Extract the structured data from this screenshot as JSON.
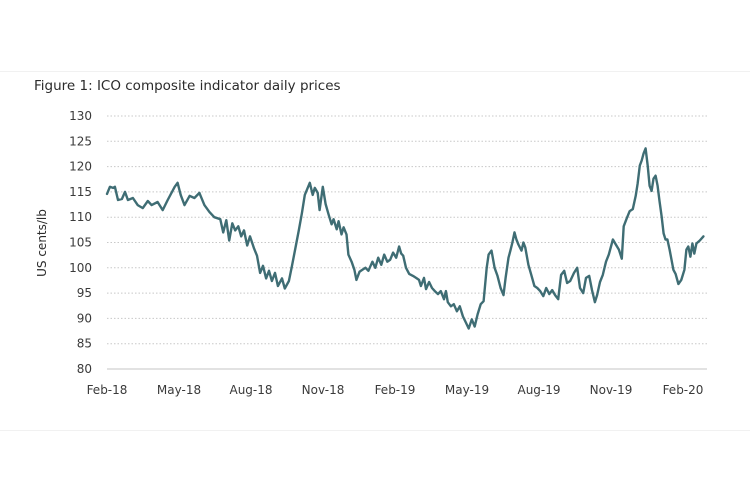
{
  "chart_data": {
    "type": "line",
    "title": "Figure 1: ICO composite indicator daily prices",
    "xlabel": "",
    "ylabel": "US cents/lb",
    "ylim": [
      80,
      130
    ],
    "yticks": [
      80,
      85,
      90,
      95,
      100,
      105,
      110,
      115,
      120,
      125,
      130
    ],
    "ytick_labels": [
      "80",
      "85",
      "90",
      "95",
      "100",
      "105",
      "110",
      "115",
      "120",
      "125",
      "130"
    ],
    "xlim_months_since_feb18": [
      0,
      25
    ],
    "xtick_months_since_feb18": [
      0,
      3,
      6,
      9,
      12,
      15,
      18,
      21,
      24
    ],
    "xtick_labels": [
      "Feb-18",
      "May-18",
      "Aug-18",
      "Nov-18",
      "Feb-19",
      "May-19",
      "Aug-19",
      "Nov-19",
      "Feb-20"
    ],
    "grid": "horizontal-dotted",
    "legend": "none",
    "line_color": "#3f6d74",
    "series": [
      {
        "name": "ICO composite indicator",
        "x_unit": "months since Feb-2018",
        "points": [
          [
            0.0,
            114.6
          ],
          [
            0.12,
            116.0
          ],
          [
            0.25,
            115.8
          ],
          [
            0.33,
            116.0
          ],
          [
            0.46,
            113.4
          ],
          [
            0.62,
            113.6
          ],
          [
            0.75,
            115.0
          ],
          [
            0.87,
            113.4
          ],
          [
            1.08,
            113.8
          ],
          [
            1.28,
            112.4
          ],
          [
            1.49,
            111.8
          ],
          [
            1.7,
            113.2
          ],
          [
            1.86,
            112.4
          ],
          [
            2.11,
            113.0
          ],
          [
            2.32,
            111.4
          ],
          [
            2.53,
            113.4
          ],
          [
            2.82,
            116.0
          ],
          [
            2.94,
            116.8
          ],
          [
            3.07,
            114.4
          ],
          [
            3.23,
            112.4
          ],
          [
            3.44,
            114.2
          ],
          [
            3.64,
            113.8
          ],
          [
            3.85,
            114.8
          ],
          [
            4.06,
            112.4
          ],
          [
            4.27,
            111.0
          ],
          [
            4.47,
            110.0
          ],
          [
            4.72,
            109.6
          ],
          [
            4.84,
            107.0
          ],
          [
            4.97,
            109.4
          ],
          [
            5.09,
            105.4
          ],
          [
            5.22,
            108.8
          ],
          [
            5.34,
            107.4
          ],
          [
            5.47,
            108.2
          ],
          [
            5.59,
            106.2
          ],
          [
            5.71,
            107.4
          ],
          [
            5.84,
            104.4
          ],
          [
            5.96,
            106.2
          ],
          [
            6.13,
            103.8
          ],
          [
            6.25,
            102.4
          ],
          [
            6.38,
            99.0
          ],
          [
            6.5,
            100.4
          ],
          [
            6.63,
            97.9
          ],
          [
            6.75,
            99.4
          ],
          [
            6.87,
            97.4
          ],
          [
            7.0,
            99.0
          ],
          [
            7.12,
            96.4
          ],
          [
            7.29,
            97.9
          ],
          [
            7.41,
            95.9
          ],
          [
            7.58,
            97.4
          ],
          [
            7.7,
            100.2
          ],
          [
            7.87,
            104.4
          ],
          [
            7.99,
            107.4
          ],
          [
            8.12,
            110.8
          ],
          [
            8.24,
            114.4
          ],
          [
            8.45,
            116.8
          ],
          [
            8.57,
            114.4
          ],
          [
            8.66,
            115.8
          ],
          [
            8.78,
            114.8
          ],
          [
            8.86,
            111.4
          ],
          [
            8.99,
            116.0
          ],
          [
            9.11,
            112.6
          ],
          [
            9.23,
            110.6
          ],
          [
            9.36,
            108.6
          ],
          [
            9.44,
            109.6
          ],
          [
            9.57,
            107.6
          ],
          [
            9.65,
            109.2
          ],
          [
            9.77,
            106.6
          ],
          [
            9.86,
            108.0
          ],
          [
            9.98,
            106.6
          ],
          [
            10.06,
            102.6
          ],
          [
            10.19,
            101.2
          ],
          [
            10.31,
            99.6
          ],
          [
            10.39,
            97.6
          ],
          [
            10.52,
            99.2
          ],
          [
            10.64,
            99.6
          ],
          [
            10.77,
            100.0
          ],
          [
            10.89,
            99.4
          ],
          [
            11.06,
            101.2
          ],
          [
            11.18,
            100.0
          ],
          [
            11.3,
            102.0
          ],
          [
            11.43,
            100.6
          ],
          [
            11.55,
            102.6
          ],
          [
            11.68,
            101.2
          ],
          [
            11.8,
            101.6
          ],
          [
            11.92,
            103.0
          ],
          [
            12.05,
            102.0
          ],
          [
            12.17,
            104.2
          ],
          [
            12.26,
            102.8
          ],
          [
            12.34,
            102.4
          ],
          [
            12.46,
            100.0
          ],
          [
            12.59,
            98.8
          ],
          [
            12.75,
            98.4
          ],
          [
            12.88,
            98.0
          ],
          [
            13.0,
            97.6
          ],
          [
            13.08,
            96.4
          ],
          [
            13.21,
            98.0
          ],
          [
            13.29,
            95.8
          ],
          [
            13.42,
            97.2
          ],
          [
            13.54,
            96.0
          ],
          [
            13.66,
            95.4
          ],
          [
            13.79,
            94.8
          ],
          [
            13.91,
            95.4
          ],
          [
            14.04,
            93.8
          ],
          [
            14.12,
            95.4
          ],
          [
            14.2,
            93.2
          ],
          [
            14.33,
            92.4
          ],
          [
            14.45,
            92.8
          ],
          [
            14.58,
            91.4
          ],
          [
            14.7,
            92.4
          ],
          [
            14.83,
            90.4
          ],
          [
            14.95,
            89.2
          ],
          [
            15.07,
            88.0
          ],
          [
            15.2,
            89.8
          ],
          [
            15.32,
            88.4
          ],
          [
            15.44,
            90.8
          ],
          [
            15.57,
            92.8
          ],
          [
            15.69,
            93.4
          ],
          [
            15.82,
            100.0
          ],
          [
            15.9,
            102.6
          ],
          [
            16.02,
            103.4
          ],
          [
            16.15,
            100.0
          ],
          [
            16.27,
            98.4
          ],
          [
            16.4,
            96.0
          ],
          [
            16.52,
            94.6
          ],
          [
            16.61,
            98.0
          ],
          [
            16.73,
            102.0
          ],
          [
            16.81,
            103.4
          ],
          [
            16.89,
            105.0
          ],
          [
            16.98,
            107.0
          ],
          [
            17.06,
            105.6
          ],
          [
            17.14,
            104.6
          ],
          [
            17.27,
            103.4
          ],
          [
            17.35,
            105.0
          ],
          [
            17.43,
            104.0
          ],
          [
            17.56,
            100.6
          ],
          [
            17.68,
            98.6
          ],
          [
            17.81,
            96.4
          ],
          [
            17.93,
            96.0
          ],
          [
            18.05,
            95.4
          ],
          [
            18.18,
            94.4
          ],
          [
            18.3,
            96.0
          ],
          [
            18.43,
            94.8
          ],
          [
            18.55,
            95.6
          ],
          [
            18.67,
            94.6
          ],
          [
            18.8,
            93.8
          ],
          [
            18.92,
            98.6
          ],
          [
            19.05,
            99.4
          ],
          [
            19.17,
            97.0
          ],
          [
            19.3,
            97.4
          ],
          [
            19.46,
            99.0
          ],
          [
            19.59,
            100.0
          ],
          [
            19.71,
            96.0
          ],
          [
            19.84,
            95.0
          ],
          [
            19.96,
            98.0
          ],
          [
            20.09,
            98.4
          ],
          [
            20.21,
            95.6
          ],
          [
            20.33,
            93.2
          ],
          [
            20.42,
            94.6
          ],
          [
            20.54,
            97.2
          ],
          [
            20.66,
            98.6
          ],
          [
            20.79,
            101.2
          ],
          [
            20.91,
            102.6
          ],
          [
            21.08,
            105.6
          ],
          [
            21.2,
            104.6
          ],
          [
            21.33,
            103.6
          ],
          [
            21.45,
            101.8
          ],
          [
            21.53,
            108.2
          ],
          [
            21.66,
            109.8
          ],
          [
            21.78,
            111.2
          ],
          [
            21.91,
            111.6
          ],
          [
            22.03,
            114.2
          ],
          [
            22.11,
            116.6
          ],
          [
            22.2,
            120.2
          ],
          [
            22.28,
            121.2
          ],
          [
            22.36,
            122.6
          ],
          [
            22.44,
            123.6
          ],
          [
            22.53,
            120.2
          ],
          [
            22.61,
            116.2
          ],
          [
            22.69,
            115.2
          ],
          [
            22.77,
            117.6
          ],
          [
            22.86,
            118.2
          ],
          [
            22.94,
            116.2
          ],
          [
            23.02,
            113.2
          ],
          [
            23.11,
            110.2
          ],
          [
            23.19,
            106.8
          ],
          [
            23.27,
            105.6
          ],
          [
            23.35,
            105.6
          ],
          [
            23.44,
            103.6
          ],
          [
            23.52,
            101.6
          ],
          [
            23.6,
            99.6
          ],
          [
            23.69,
            98.8
          ],
          [
            23.81,
            96.8
          ],
          [
            23.93,
            97.6
          ],
          [
            24.06,
            99.6
          ],
          [
            24.14,
            103.6
          ],
          [
            24.22,
            104.2
          ],
          [
            24.31,
            102.2
          ],
          [
            24.39,
            104.8
          ],
          [
            24.47,
            102.8
          ],
          [
            24.56,
            104.8
          ],
          [
            24.7,
            105.4
          ],
          [
            24.85,
            106.2
          ]
        ]
      }
    ]
  }
}
